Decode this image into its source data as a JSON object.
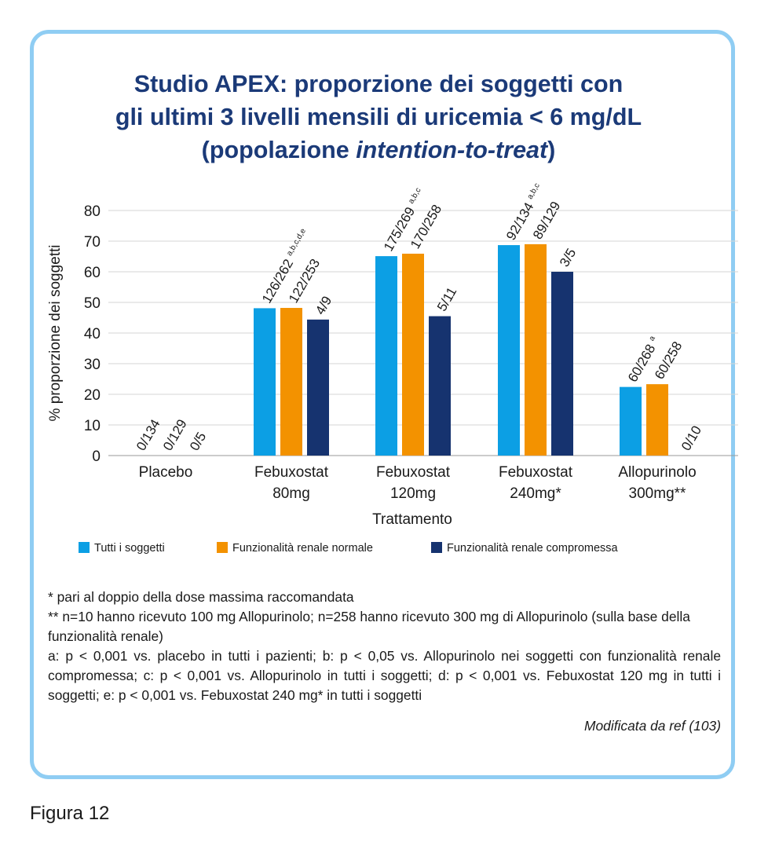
{
  "title_lines": [
    "Studio APEX: proporzione dei soggetti con",
    "gli ultimi 3 livelli mensili di uricemia < 6 mg/dL"
  ],
  "title_line3_pre": "(popolazione ",
  "title_line3_italic": "intention-to-treat",
  "title_line3_post": ")",
  "chart_data": {
    "type": "bar",
    "ylabel": "% proporzione dei soggetti",
    "xlabel": "Trattamento",
    "ylim": [
      0,
      80
    ],
    "yticks": [
      0,
      10,
      20,
      30,
      40,
      50,
      60,
      70,
      80
    ],
    "grid": true,
    "categories": [
      [
        "Placebo"
      ],
      [
        "Febuxostat",
        "80mg"
      ],
      [
        "Febuxostat",
        "120mg"
      ],
      [
        "Febuxostat",
        "240mg*"
      ],
      [
        "Allopurinolo",
        "300mg**"
      ]
    ],
    "series": [
      {
        "name": "Tutti i soggetti",
        "color": "#0c9fe4",
        "values": [
          0,
          48.1,
          65.1,
          68.7,
          22.4
        ],
        "labels": [
          "0/134",
          "126/262",
          "175/269",
          "92/134",
          "60/268"
        ],
        "superscripts": [
          "",
          "a,b,c,d,e",
          "a,b,c",
          "a,b,c",
          "a"
        ]
      },
      {
        "name": "Funzionalità renale normale",
        "color": "#f39200",
        "values": [
          0,
          48.2,
          65.9,
          69.0,
          23.3
        ],
        "labels": [
          "0/129",
          "122/253",
          "170/258",
          "89/129",
          "60/258"
        ],
        "superscripts": [
          "",
          "",
          "",
          "",
          ""
        ]
      },
      {
        "name": "Funzionalità renale compromessa",
        "color": "#16336f",
        "values": [
          0,
          44.4,
          45.5,
          60.0,
          0
        ],
        "labels": [
          "0/5",
          "4/9",
          "5/11",
          "3/5",
          "0/10"
        ],
        "superscripts": [
          "",
          "",
          "",
          "",
          ""
        ]
      }
    ],
    "legend_position": "bottom"
  },
  "notes": {
    "line1": "* pari al doppio della dose massima raccomandata",
    "line2": "** n=10 hanno ricevuto 100 mg Allopurinolo; n=258 hanno ricevuto 300 mg di Allopurinolo (sulla base della funzionalità renale)",
    "line3": "a: p < 0,001 vs. placebo in tutti i pazienti; b: p < 0,05 vs. Allopurinolo nei soggetti con funzionalità renale compromessa; c: p < 0,001 vs. Allopurinolo in tutti i soggetti; d: p < 0,001 vs. Febuxostat 120 mg in tutti i soggetti; e: p < 0,001 vs. Febuxostat 240 mg* in tutti i soggetti",
    "reference": "Modificata da ref (103)"
  },
  "figure_label": "Figura 12"
}
